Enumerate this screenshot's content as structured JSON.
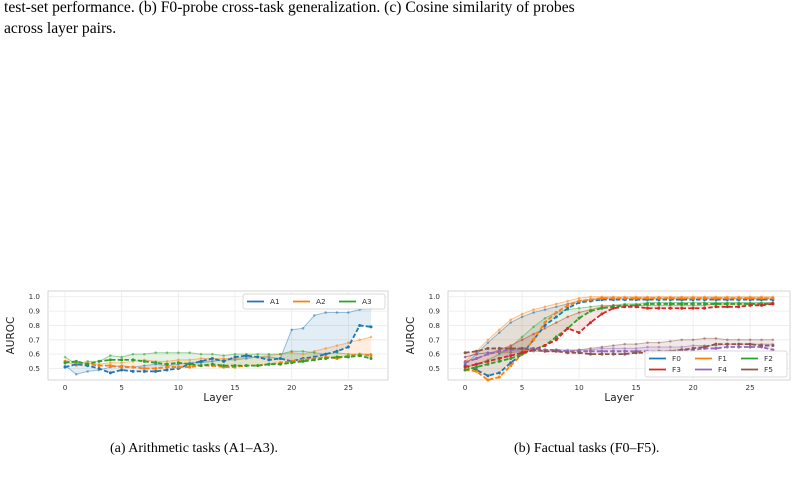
{
  "caption_top": {
    "line1": "test-set performance. (b) F0-probe cross-task generalization. (c) Cosine similarity of probes",
    "line2": "across layer pairs."
  },
  "chart_data": [
    {
      "type": "line",
      "caption": "(a) Arithmetic tasks (A1–A3).",
      "xlabel": "Layer",
      "ylabel": "AUROC",
      "xlim": [
        -1.5,
        28.5
      ],
      "ylim": [
        0.42,
        1.04
      ],
      "xticks": [
        0,
        5,
        10,
        15,
        20,
        25
      ],
      "yticks": [
        0.5,
        0.6,
        0.7,
        0.8,
        0.9,
        1.0
      ],
      "ytick_labels": [
        "0.5",
        "0.6",
        "0.7",
        "0.8",
        "0.9",
        "1.0"
      ],
      "grid": true,
      "legend_position": "top-right",
      "legend_columns": 3,
      "series": [
        {
          "name": "A1",
          "color": "#1f77b4",
          "test": [
            0.51,
            0.53,
            0.52,
            0.5,
            0.47,
            0.49,
            0.48,
            0.48,
            0.48,
            0.49,
            0.5,
            0.53,
            0.55,
            0.57,
            0.55,
            0.58,
            0.59,
            0.58,
            0.56,
            0.57,
            0.55,
            0.57,
            0.58,
            0.6,
            0.62,
            0.65,
            0.8,
            0.79
          ],
          "train": [
            0.52,
            0.46,
            0.48,
            0.49,
            0.51,
            0.52,
            0.51,
            0.52,
            0.53,
            0.52,
            0.53,
            0.54,
            0.54,
            0.55,
            0.56,
            0.56,
            0.57,
            0.58,
            0.58,
            0.57,
            0.77,
            0.78,
            0.87,
            0.89,
            0.89,
            0.89,
            0.91,
            0.92
          ]
        },
        {
          "name": "A2",
          "color": "#ff7f0e",
          "test": [
            0.55,
            0.54,
            0.53,
            0.52,
            0.52,
            0.51,
            0.51,
            0.5,
            0.5,
            0.51,
            0.51,
            0.51,
            0.52,
            0.52,
            0.51,
            0.51,
            0.52,
            0.52,
            0.53,
            0.54,
            0.55,
            0.56,
            0.57,
            0.58,
            0.57,
            0.59,
            0.6,
            0.59
          ],
          "train": [
            0.55,
            0.52,
            0.54,
            0.53,
            0.54,
            0.54,
            0.55,
            0.56,
            0.55,
            0.55,
            0.56,
            0.56,
            0.57,
            0.57,
            0.57,
            0.57,
            0.58,
            0.58,
            0.59,
            0.6,
            0.61,
            0.6,
            0.62,
            0.64,
            0.66,
            0.68,
            0.7,
            0.72
          ]
        },
        {
          "name": "A3",
          "color": "#2ca02c",
          "test": [
            0.54,
            0.55,
            0.53,
            0.55,
            0.56,
            0.56,
            0.56,
            0.55,
            0.54,
            0.53,
            0.54,
            0.53,
            0.52,
            0.53,
            0.52,
            0.52,
            0.52,
            0.52,
            0.53,
            0.53,
            0.54,
            0.55,
            0.56,
            0.57,
            0.58,
            0.58,
            0.59,
            0.57
          ],
          "train": [
            0.58,
            0.53,
            0.55,
            0.55,
            0.59,
            0.58,
            0.6,
            0.6,
            0.61,
            0.61,
            0.61,
            0.61,
            0.6,
            0.6,
            0.59,
            0.6,
            0.6,
            0.6,
            0.6,
            0.6,
            0.62,
            0.62,
            0.61,
            0.6,
            0.61,
            0.6,
            0.6,
            0.6
          ]
        }
      ]
    },
    {
      "type": "line",
      "caption": "(b) Factual tasks (F0–F5).",
      "xlabel": "Layer",
      "ylabel": "AUROC",
      "xlim": [
        -1.5,
        28.5
      ],
      "ylim": [
        0.42,
        1.04
      ],
      "xticks": [
        0,
        5,
        10,
        15,
        20,
        25
      ],
      "yticks": [
        0.5,
        0.6,
        0.7,
        0.8,
        0.9,
        1.0
      ],
      "ytick_labels": [
        "0.5",
        "0.6",
        "0.7",
        "0.8",
        "0.9",
        "1.0"
      ],
      "grid": true,
      "legend_position": "bottom-right",
      "legend_columns": 3,
      "series": [
        {
          "name": "F0",
          "color": "#1f77b4",
          "test": [
            0.52,
            0.49,
            0.45,
            0.47,
            0.54,
            0.6,
            0.7,
            0.8,
            0.86,
            0.92,
            0.96,
            0.97,
            0.98,
            0.98,
            0.98,
            0.98,
            0.98,
            0.98,
            0.98,
            0.98,
            0.98,
            0.98,
            0.98,
            0.98,
            0.98,
            0.98,
            0.98,
            0.98
          ],
          "train": [
            0.53,
            0.6,
            0.68,
            0.75,
            0.82,
            0.86,
            0.89,
            0.91,
            0.93,
            0.95,
            0.97,
            0.98,
            0.99,
            0.99,
            0.99,
            0.99,
            0.99,
            0.99,
            0.99,
            0.99,
            0.99,
            0.99,
            0.99,
            0.99,
            0.99,
            0.99,
            0.99,
            0.99
          ]
        },
        {
          "name": "F1",
          "color": "#ff7f0e",
          "test": [
            0.49,
            0.48,
            0.42,
            0.44,
            0.52,
            0.6,
            0.7,
            0.82,
            0.89,
            0.94,
            0.97,
            0.98,
            0.99,
            0.99,
            0.99,
            0.99,
            0.99,
            0.99,
            0.99,
            0.99,
            0.99,
            0.99,
            0.99,
            0.99,
            0.99,
            0.99,
            0.99,
            0.99
          ],
          "train": [
            0.55,
            0.62,
            0.7,
            0.77,
            0.84,
            0.88,
            0.91,
            0.93,
            0.95,
            0.97,
            0.99,
            1.0,
            1.0,
            1.0,
            1.0,
            1.0,
            1.0,
            1.0,
            1.0,
            1.0,
            1.0,
            1.0,
            1.0,
            1.0,
            1.0,
            1.0,
            1.0,
            1.0
          ]
        },
        {
          "name": "F2",
          "color": "#2ca02c",
          "test": [
            0.49,
            0.51,
            0.53,
            0.55,
            0.57,
            0.6,
            0.63,
            0.66,
            0.72,
            0.78,
            0.85,
            0.9,
            0.92,
            0.93,
            0.94,
            0.94,
            0.95,
            0.95,
            0.95,
            0.95,
            0.95,
            0.95,
            0.95,
            0.95,
            0.95,
            0.95,
            0.95,
            0.95
          ],
          "train": [
            0.51,
            0.53,
            0.56,
            0.6,
            0.65,
            0.72,
            0.79,
            0.85,
            0.89,
            0.91,
            0.92,
            0.93,
            0.94,
            0.94,
            0.95,
            0.95,
            0.96,
            0.96,
            0.96,
            0.96,
            0.96,
            0.96,
            0.96,
            0.96,
            0.96,
            0.96,
            0.96,
            0.96
          ]
        },
        {
          "name": "F3",
          "color": "#d62728",
          "test": [
            0.51,
            0.53,
            0.55,
            0.57,
            0.59,
            0.61,
            0.63,
            0.66,
            0.7,
            0.78,
            0.75,
            0.82,
            0.88,
            0.92,
            0.93,
            0.93,
            0.92,
            0.92,
            0.92,
            0.92,
            0.92,
            0.92,
            0.93,
            0.93,
            0.93,
            0.94,
            0.94,
            0.95
          ],
          "train": [
            0.55,
            0.57,
            0.6,
            0.63,
            0.66,
            0.7,
            0.74,
            0.78,
            0.82,
            0.86,
            0.89,
            0.91,
            0.93,
            0.94,
            0.94,
            0.94,
            0.94,
            0.94,
            0.94,
            0.94,
            0.94,
            0.94,
            0.95,
            0.95,
            0.95,
            0.95,
            0.95,
            0.96
          ]
        },
        {
          "name": "F4",
          "color": "#9467bd",
          "test": [
            0.54,
            0.57,
            0.6,
            0.62,
            0.63,
            0.64,
            0.64,
            0.63,
            0.63,
            0.62,
            0.62,
            0.62,
            0.62,
            0.62,
            0.62,
            0.62,
            0.62,
            0.62,
            0.62,
            0.63,
            0.63,
            0.64,
            0.64,
            0.65,
            0.65,
            0.65,
            0.65,
            0.63
          ],
          "train": [
            0.58,
            0.6,
            0.61,
            0.62,
            0.62,
            0.63,
            0.63,
            0.63,
            0.63,
            0.63,
            0.63,
            0.63,
            0.64,
            0.64,
            0.64,
            0.64,
            0.65,
            0.65,
            0.65,
            0.65,
            0.66,
            0.66,
            0.66,
            0.67,
            0.67,
            0.67,
            0.67,
            0.67
          ]
        },
        {
          "name": "F5",
          "color": "#8c564b",
          "test": [
            0.61,
            0.62,
            0.64,
            0.64,
            0.64,
            0.64,
            0.63,
            0.62,
            0.62,
            0.61,
            0.61,
            0.6,
            0.6,
            0.6,
            0.6,
            0.61,
            0.61,
            0.62,
            0.62,
            0.63,
            0.64,
            0.65,
            0.67,
            0.67,
            0.67,
            0.67,
            0.66,
            0.66
          ],
          "train": [
            0.58,
            0.6,
            0.61,
            0.61,
            0.61,
            0.62,
            0.62,
            0.62,
            0.62,
            0.62,
            0.63,
            0.64,
            0.65,
            0.66,
            0.67,
            0.67,
            0.68,
            0.68,
            0.69,
            0.7,
            0.7,
            0.71,
            0.71,
            0.7,
            0.7,
            0.7,
            0.7,
            0.7
          ]
        }
      ]
    }
  ]
}
